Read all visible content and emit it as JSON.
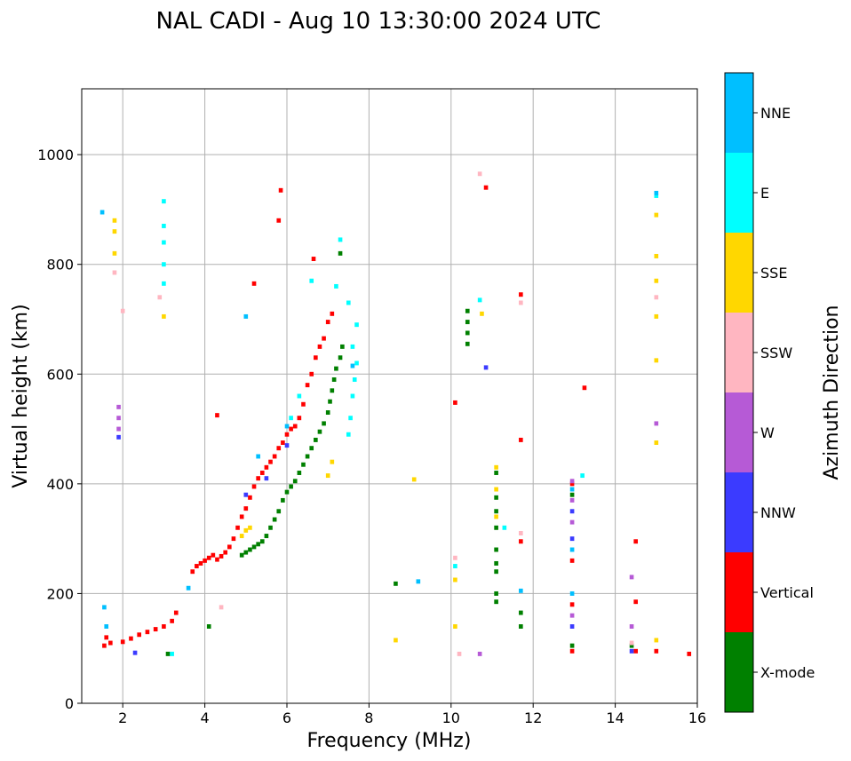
{
  "chart_data": {
    "type": "scatter",
    "title": "NAL CADI - Aug 10 13:30:00 2024 UTC",
    "xlabel": "Frequency (MHz)",
    "ylabel": "Virtual height (km)",
    "xlim": [
      1,
      16
    ],
    "ylim": [
      0,
      1120
    ],
    "xticks": [
      2,
      4,
      6,
      8,
      10,
      12,
      14,
      16
    ],
    "yticks": [
      0,
      200,
      400,
      600,
      800,
      1000
    ],
    "grid": true,
    "colorbar": {
      "label": "Azimuth Direction",
      "categories": [
        {
          "name": "X-mode",
          "color": "#008000"
        },
        {
          "name": "Vertical",
          "color": "#ff0000"
        },
        {
          "name": "NNW",
          "color": "#3b3bff"
        },
        {
          "name": "W",
          "color": "#b65ad6"
        },
        {
          "name": "SSW",
          "color": "#ffb6c1"
        },
        {
          "name": "SSE",
          "color": "#ffd700"
        },
        {
          "name": "E",
          "color": "#00ffff"
        },
        {
          "name": "NNE",
          "color": "#00bfff"
        }
      ]
    },
    "series": [
      {
        "name": "X-mode",
        "points": [
          [
            3.1,
            90
          ],
          [
            4.1,
            140
          ],
          [
            4.9,
            270
          ],
          [
            5.0,
            275
          ],
          [
            5.1,
            280
          ],
          [
            5.2,
            285
          ],
          [
            5.3,
            290
          ],
          [
            5.4,
            295
          ],
          [
            5.5,
            305
          ],
          [
            5.6,
            320
          ],
          [
            5.7,
            335
          ],
          [
            5.8,
            350
          ],
          [
            5.9,
            370
          ],
          [
            6.0,
            385
          ],
          [
            6.1,
            395
          ],
          [
            6.2,
            405
          ],
          [
            6.3,
            420
          ],
          [
            6.4,
            435
          ],
          [
            6.5,
            450
          ],
          [
            6.6,
            465
          ],
          [
            6.7,
            480
          ],
          [
            6.8,
            495
          ],
          [
            6.9,
            510
          ],
          [
            7.0,
            530
          ],
          [
            7.05,
            550
          ],
          [
            7.1,
            570
          ],
          [
            7.15,
            590
          ],
          [
            7.2,
            610
          ],
          [
            7.3,
            630
          ],
          [
            7.35,
            650
          ],
          [
            7.3,
            820
          ],
          [
            8.65,
            218
          ],
          [
            10.4,
            655
          ],
          [
            10.4,
            675
          ],
          [
            10.4,
            695
          ],
          [
            10.4,
            715
          ],
          [
            11.1,
            185
          ],
          [
            11.1,
            200
          ],
          [
            11.1,
            240
          ],
          [
            11.1,
            255
          ],
          [
            11.1,
            280
          ],
          [
            11.1,
            320
          ],
          [
            11.1,
            350
          ],
          [
            11.1,
            375
          ],
          [
            11.1,
            420
          ],
          [
            11.7,
            140
          ],
          [
            11.7,
            165
          ],
          [
            12.95,
            105
          ],
          [
            12.95,
            380
          ],
          [
            14.4,
            105
          ]
        ]
      },
      {
        "name": "Vertical",
        "points": [
          [
            1.55,
            105
          ],
          [
            1.6,
            120
          ],
          [
            1.7,
            110
          ],
          [
            2.0,
            112
          ],
          [
            2.2,
            118
          ],
          [
            2.4,
            125
          ],
          [
            2.6,
            130
          ],
          [
            2.8,
            135
          ],
          [
            3.0,
            140
          ],
          [
            3.2,
            150
          ],
          [
            3.3,
            165
          ],
          [
            3.7,
            240
          ],
          [
            3.8,
            250
          ],
          [
            3.9,
            255
          ],
          [
            4.0,
            260
          ],
          [
            4.1,
            265
          ],
          [
            4.2,
            270
          ],
          [
            4.3,
            262
          ],
          [
            4.4,
            268
          ],
          [
            4.5,
            275
          ],
          [
            4.6,
            285
          ],
          [
            4.7,
            300
          ],
          [
            4.8,
            320
          ],
          [
            4.9,
            340
          ],
          [
            5.0,
            355
          ],
          [
            5.1,
            375
          ],
          [
            5.2,
            395
          ],
          [
            5.3,
            410
          ],
          [
            5.4,
            420
          ],
          [
            5.5,
            430
          ],
          [
            5.6,
            440
          ],
          [
            5.7,
            450
          ],
          [
            5.8,
            465
          ],
          [
            5.9,
            475
          ],
          [
            6.0,
            490
          ],
          [
            6.1,
            500
          ],
          [
            6.2,
            505
          ],
          [
            6.3,
            520
          ],
          [
            6.4,
            545
          ],
          [
            6.5,
            580
          ],
          [
            6.6,
            600
          ],
          [
            6.7,
            630
          ],
          [
            6.8,
            650
          ],
          [
            6.9,
            665
          ],
          [
            7.0,
            695
          ],
          [
            7.1,
            710
          ],
          [
            4.3,
            525
          ],
          [
            5.2,
            765
          ],
          [
            5.8,
            880
          ],
          [
            5.85,
            935
          ],
          [
            6.65,
            810
          ],
          [
            10.1,
            548
          ],
          [
            10.85,
            940
          ],
          [
            11.7,
            295
          ],
          [
            11.7,
            480
          ],
          [
            11.7,
            745
          ],
          [
            12.95,
            95
          ],
          [
            12.95,
            180
          ],
          [
            12.95,
            260
          ],
          [
            12.95,
            400
          ],
          [
            13.25,
            575
          ],
          [
            14.5,
            95
          ],
          [
            14.5,
            185
          ],
          [
            14.5,
            295
          ],
          [
            15.0,
            95
          ],
          [
            15.8,
            90
          ]
        ]
      },
      {
        "name": "NNW",
        "points": [
          [
            1.9,
            485
          ],
          [
            2.3,
            92
          ],
          [
            5.0,
            380
          ],
          [
            5.5,
            410
          ],
          [
            6.0,
            470
          ],
          [
            10.85,
            612
          ],
          [
            12.95,
            140
          ],
          [
            12.95,
            300
          ],
          [
            12.95,
            350
          ],
          [
            14.4,
            95
          ]
        ]
      },
      {
        "name": "W",
        "points": [
          [
            1.9,
            500
          ],
          [
            1.9,
            520
          ],
          [
            1.9,
            540
          ],
          [
            10.7,
            90
          ],
          [
            12.95,
            160
          ],
          [
            12.95,
            330
          ],
          [
            12.95,
            370
          ],
          [
            12.95,
            405
          ],
          [
            14.4,
            140
          ],
          [
            14.4,
            230
          ],
          [
            15.0,
            510
          ]
        ]
      },
      {
        "name": "SSW",
        "points": [
          [
            1.8,
            785
          ],
          [
            2.0,
            715
          ],
          [
            2.9,
            740
          ],
          [
            4.4,
            175
          ],
          [
            10.1,
            265
          ],
          [
            10.2,
            90
          ],
          [
            10.7,
            965
          ],
          [
            11.7,
            310
          ],
          [
            11.7,
            730
          ],
          [
            14.4,
            110
          ],
          [
            15.0,
            740
          ]
        ]
      },
      {
        "name": "SSE",
        "points": [
          [
            1.8,
            820
          ],
          [
            1.8,
            860
          ],
          [
            1.8,
            880
          ],
          [
            3.0,
            705
          ],
          [
            4.9,
            305
          ],
          [
            5.0,
            315
          ],
          [
            5.1,
            320
          ],
          [
            7.1,
            440
          ],
          [
            7.0,
            415
          ],
          [
            8.65,
            115
          ],
          [
            9.1,
            408
          ],
          [
            10.1,
            140
          ],
          [
            10.1,
            225
          ],
          [
            10.75,
            710
          ],
          [
            11.1,
            340
          ],
          [
            11.1,
            390
          ],
          [
            11.1,
            430
          ],
          [
            15.0,
            115
          ],
          [
            15.0,
            475
          ],
          [
            15.0,
            625
          ],
          [
            15.0,
            705
          ],
          [
            15.0,
            770
          ],
          [
            15.0,
            815
          ],
          [
            15.0,
            890
          ]
        ]
      },
      {
        "name": "E",
        "points": [
          [
            3.0,
            765
          ],
          [
            3.0,
            800
          ],
          [
            3.0,
            840
          ],
          [
            3.0,
            870
          ],
          [
            3.0,
            915
          ],
          [
            3.2,
            90
          ],
          [
            6.1,
            520
          ],
          [
            6.3,
            560
          ],
          [
            6.6,
            770
          ],
          [
            7.2,
            760
          ],
          [
            7.3,
            845
          ],
          [
            7.5,
            490
          ],
          [
            7.55,
            520
          ],
          [
            7.6,
            560
          ],
          [
            7.65,
            590
          ],
          [
            7.7,
            620
          ],
          [
            7.6,
            650
          ],
          [
            7.7,
            690
          ],
          [
            7.5,
            730
          ],
          [
            10.1,
            250
          ],
          [
            10.7,
            735
          ],
          [
            11.3,
            320
          ],
          [
            13.2,
            415
          ],
          [
            15.0,
            925
          ]
        ]
      },
      {
        "name": "NNE",
        "points": [
          [
            1.5,
            895
          ],
          [
            1.55,
            175
          ],
          [
            1.6,
            140
          ],
          [
            3.6,
            210
          ],
          [
            5.0,
            705
          ],
          [
            5.3,
            450
          ],
          [
            6.0,
            505
          ],
          [
            7.6,
            615
          ],
          [
            9.2,
            222
          ],
          [
            11.7,
            205
          ],
          [
            12.95,
            200
          ],
          [
            12.95,
            280
          ],
          [
            12.95,
            390
          ],
          [
            15.0,
            930
          ]
        ]
      }
    ]
  }
}
